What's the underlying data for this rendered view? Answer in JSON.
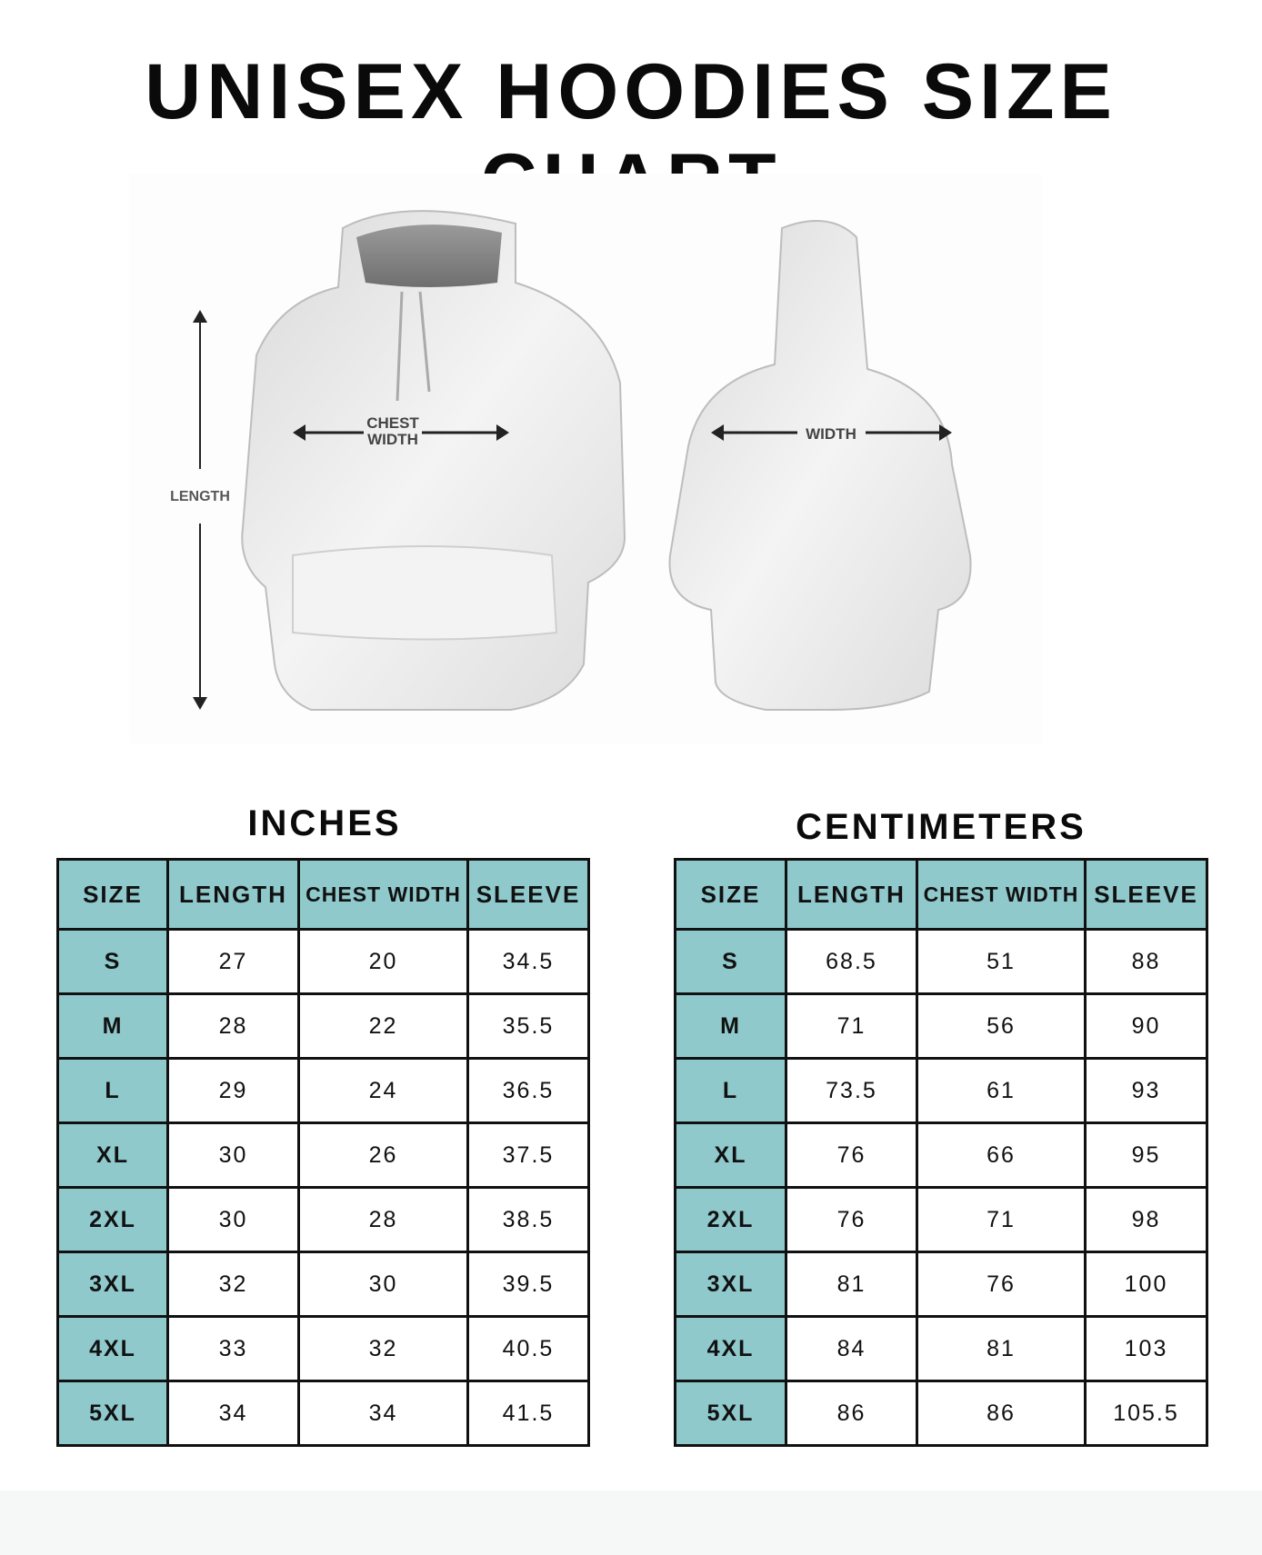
{
  "title": "UNISEX HOODIES SIZE CHART",
  "diagram": {
    "front_labels": {
      "length": "LENGTH",
      "chest_width_line1": "CHEST",
      "chest_width_line2": "WIDTH"
    },
    "back_labels": {
      "width": "WIDTH"
    },
    "hoodie_color": "#e8e8e8"
  },
  "colors": {
    "header_bg": "#8fc9cc",
    "border": "#111111"
  },
  "inches": {
    "title": "INCHES",
    "headers": [
      "SIZE",
      "LENGTH",
      "CHEST WIDTH",
      "SLEEVE"
    ],
    "rows": [
      [
        "S",
        "27",
        "20",
        "34.5"
      ],
      [
        "M",
        "28",
        "22",
        "35.5"
      ],
      [
        "L",
        "29",
        "24",
        "36.5"
      ],
      [
        "XL",
        "30",
        "26",
        "37.5"
      ],
      [
        "2XL",
        "30",
        "28",
        "38.5"
      ],
      [
        "3XL",
        "32",
        "30",
        "39.5"
      ],
      [
        "4XL",
        "33",
        "32",
        "40.5"
      ],
      [
        "5XL",
        "34",
        "34",
        "41.5"
      ]
    ]
  },
  "centimeters": {
    "title": "CENTIMETERS",
    "headers": [
      "SIZE",
      "LENGTH",
      "CHEST WIDTH",
      "SLEEVE"
    ],
    "rows": [
      [
        "S",
        "68.5",
        "51",
        "88"
      ],
      [
        "M",
        "71",
        "56",
        "90"
      ],
      [
        "L",
        "73.5",
        "61",
        "93"
      ],
      [
        "XL",
        "76",
        "66",
        "95"
      ],
      [
        "2XL",
        "76",
        "71",
        "98"
      ],
      [
        "3XL",
        "81",
        "76",
        "100"
      ],
      [
        "4XL",
        "84",
        "81",
        "103"
      ],
      [
        "5XL",
        "86",
        "86",
        "105.5"
      ]
    ]
  }
}
